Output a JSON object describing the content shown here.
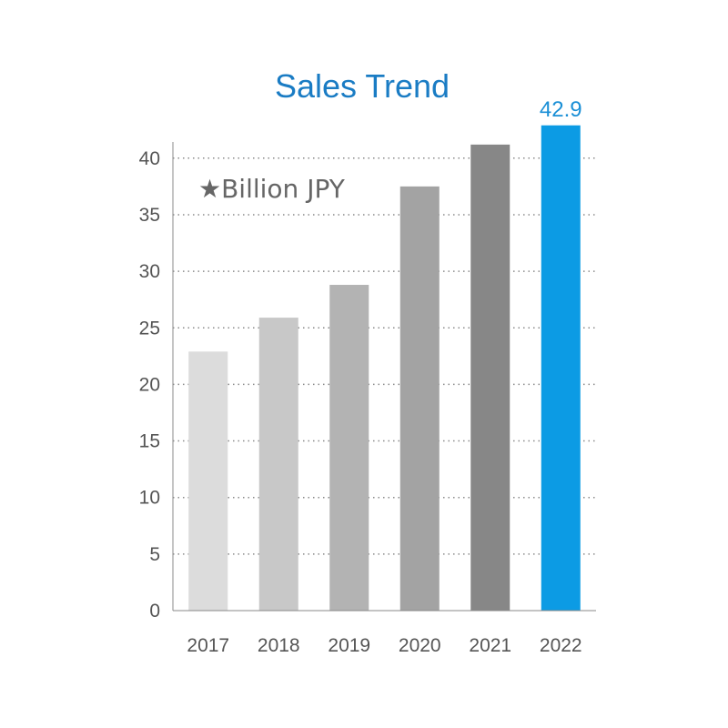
{
  "chart_data": {
    "type": "bar",
    "title": "Sales Trend",
    "unit_note": "★Billion JPY",
    "categories": [
      "2017",
      "2018",
      "2019",
      "2020",
      "2021",
      "2022"
    ],
    "values": [
      22.9,
      25.9,
      28.8,
      37.5,
      41.2,
      42.9
    ],
    "ylim": [
      0,
      41.5
    ],
    "yticks": [
      "0",
      "5",
      "10",
      "15",
      "20",
      "25",
      "30",
      "35",
      "40"
    ],
    "ytick_values": [
      0,
      5,
      10,
      15,
      20,
      25,
      30,
      35,
      40
    ],
    "grid": true,
    "data_labels": [
      {
        "index": 5,
        "text": "42.9"
      }
    ],
    "colors": [
      "#dcdcdc",
      "#c8c8c8",
      "#b3b3b3",
      "#a3a3a3",
      "#878787",
      "#0c9be4"
    ]
  }
}
